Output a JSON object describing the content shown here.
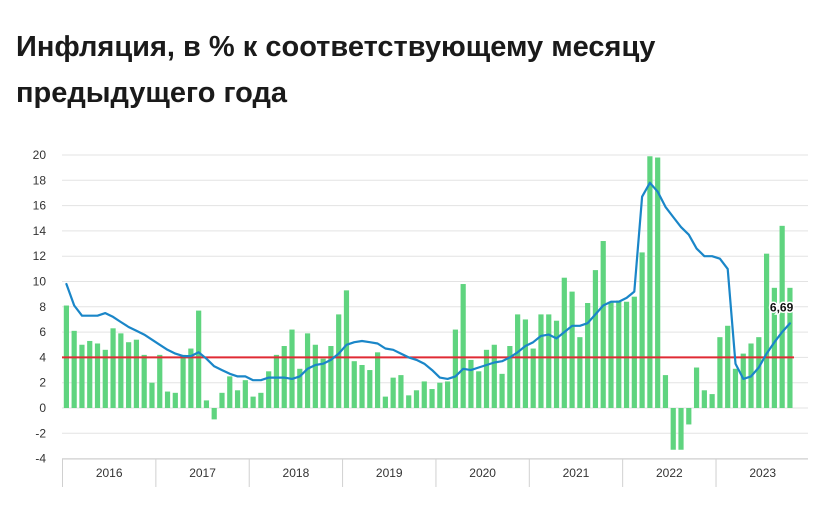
{
  "chart_data": {
    "type": "bar",
    "title": "Инфляция, в % к соответствующему месяцу предыдущего года",
    "ylim": [
      -4,
      20
    ],
    "y_ticks": [
      20,
      18,
      16,
      14,
      12,
      10,
      8,
      6,
      4,
      2,
      0,
      -2,
      -4
    ],
    "grid": true,
    "x_axis_labels": [
      "2016",
      "2017",
      "2018",
      "2019",
      "2020",
      "2021",
      "2022",
      "2023"
    ],
    "months": [
      "2016-01",
      "2016-02",
      "2016-03",
      "2016-04",
      "2016-05",
      "2016-06",
      "2016-07",
      "2016-08",
      "2016-09",
      "2016-10",
      "2016-11",
      "2016-12",
      "2017-01",
      "2017-02",
      "2017-03",
      "2017-04",
      "2017-05",
      "2017-06",
      "2017-07",
      "2017-08",
      "2017-09",
      "2017-10",
      "2017-11",
      "2017-12",
      "2018-01",
      "2018-02",
      "2018-03",
      "2018-04",
      "2018-05",
      "2018-06",
      "2018-07",
      "2018-08",
      "2018-09",
      "2018-10",
      "2018-11",
      "2018-12",
      "2019-01",
      "2019-02",
      "2019-03",
      "2019-04",
      "2019-05",
      "2019-06",
      "2019-07",
      "2019-08",
      "2019-09",
      "2019-10",
      "2019-11",
      "2019-12",
      "2020-01",
      "2020-02",
      "2020-03",
      "2020-04",
      "2020-05",
      "2020-06",
      "2020-07",
      "2020-08",
      "2020-09",
      "2020-10",
      "2020-11",
      "2020-12",
      "2021-01",
      "2021-02",
      "2021-03",
      "2021-04",
      "2021-05",
      "2021-06",
      "2021-07",
      "2021-08",
      "2021-09",
      "2021-10",
      "2021-11",
      "2021-12",
      "2022-01",
      "2022-02",
      "2022-03",
      "2022-04",
      "2022-05",
      "2022-06",
      "2022-07",
      "2022-08",
      "2022-09",
      "2022-10",
      "2022-11",
      "2022-12",
      "2023-01",
      "2023-02",
      "2023-03",
      "2023-04",
      "2023-05",
      "2023-06",
      "2023-07",
      "2023-08",
      "2023-09",
      "2023-10"
    ],
    "series": [
      {
        "type": "bar",
        "color": "#5fd47f",
        "values": [
          8.1,
          6.1,
          5.0,
          5.3,
          5.1,
          4.6,
          6.3,
          5.9,
          5.2,
          5.4,
          4.2,
          2.0,
          4.2,
          1.3,
          1.2,
          4.2,
          4.7,
          7.7,
          0.6,
          -0.9,
          1.2,
          2.5,
          1.4,
          2.2,
          0.9,
          1.2,
          2.9,
          4.2,
          4.9,
          6.2,
          3.1,
          5.9,
          5.0,
          3.9,
          4.9,
          7.4,
          9.3,
          3.7,
          3.4,
          3.0,
          4.4,
          0.9,
          2.4,
          2.6,
          1.0,
          1.4,
          2.1,
          1.5,
          2.0,
          2.1,
          6.2,
          9.8,
          3.8,
          2.9,
          4.6,
          5.0,
          2.7,
          4.9,
          7.4,
          7.0,
          4.7,
          7.4,
          7.4,
          6.9,
          10.3,
          9.2,
          5.6,
          8.3,
          10.9,
          13.2,
          8.4,
          8.5,
          8.4,
          8.8,
          12.3,
          19.9,
          19.8,
          2.6,
          -3.3,
          -3.3,
          -1.3,
          3.2,
          1.4,
          1.1,
          5.6,
          6.5,
          3.1,
          4.3,
          5.1,
          5.6,
          12.2,
          9.5,
          14.4,
          9.5
        ]
      },
      {
        "type": "line",
        "color": "#1a86c8",
        "values": [
          9.8,
          8.1,
          7.3,
          7.3,
          7.3,
          7.5,
          7.2,
          6.8,
          6.4,
          6.1,
          5.8,
          5.4,
          5.0,
          4.6,
          4.3,
          4.1,
          4.1,
          4.4,
          3.9,
          3.3,
          3.0,
          2.7,
          2.5,
          2.5,
          2.2,
          2.2,
          2.4,
          2.4,
          2.4,
          2.3,
          2.5,
          3.1,
          3.4,
          3.5,
          3.8,
          4.3,
          5.0,
          5.2,
          5.3,
          5.2,
          5.1,
          4.7,
          4.6,
          4.3,
          4.0,
          3.8,
          3.5,
          3.0,
          2.4,
          2.3,
          2.5,
          3.1,
          3.0,
          3.2,
          3.4,
          3.6,
          3.7,
          4.0,
          4.4,
          4.9,
          5.2,
          5.7,
          5.8,
          5.5,
          6.0,
          6.5,
          6.5,
          6.7,
          7.4,
          8.1,
          8.4,
          8.4,
          8.7,
          9.2,
          16.7,
          17.8,
          17.1,
          15.9,
          15.1,
          14.3,
          13.7,
          12.6,
          12.0,
          12.0,
          11.8,
          11.0,
          3.5,
          2.3,
          2.5,
          3.2,
          4.3,
          5.2,
          6.0,
          6.69
        ]
      }
    ],
    "reference_line": {
      "value": 4,
      "color": "#e02b35"
    },
    "annotations": [
      {
        "text": "6,69"
      }
    ]
  }
}
